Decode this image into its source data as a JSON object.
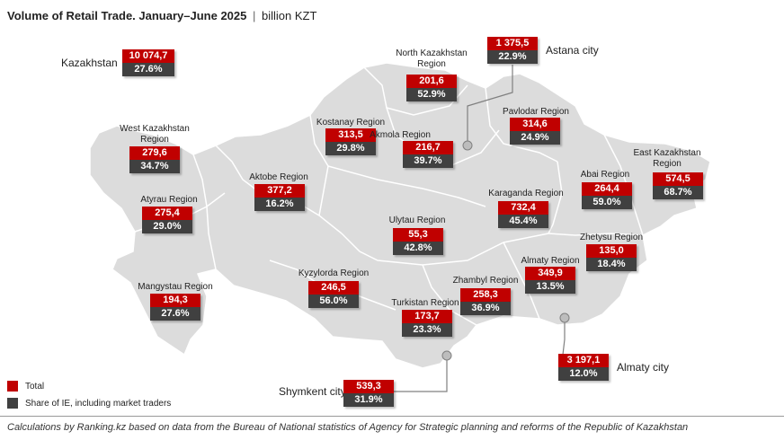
{
  "header": {
    "title": "Volume of Retail Trade. January–June 2025",
    "separator": "|",
    "unit": "billion KZT"
  },
  "colors": {
    "total": "#c00000",
    "share": "#404040",
    "land": "#dcdcdc",
    "border": "#ffffff"
  },
  "regions": [
    {
      "id": "kazakhstan",
      "name": "Kazakhstan",
      "total": "10 074,7",
      "share": "27.6%"
    },
    {
      "id": "west-kazakhstan",
      "name": "West Kazakhstan Region",
      "total": "279,6",
      "share": "34.7%"
    },
    {
      "id": "atyrau",
      "name": "Atyrau Region",
      "total": "275,4",
      "share": "29.0%"
    },
    {
      "id": "mangystau",
      "name": "Mangystau Region",
      "total": "194,3",
      "share": "27.6%"
    },
    {
      "id": "aktobe",
      "name": "Aktobe Region",
      "total": "377,2",
      "share": "16.2%"
    },
    {
      "id": "kostanay",
      "name": "Kostanay Region",
      "total": "313,5",
      "share": "29.8%"
    },
    {
      "id": "north-kazakhstan",
      "name": "North Kazakhstan Region",
      "total": "201,6",
      "share": "52.9%"
    },
    {
      "id": "akmola",
      "name": "Akmola Region",
      "total": "216,7",
      "share": "39.7%"
    },
    {
      "id": "astana",
      "name": "Astana city",
      "total": "1 375,5",
      "share": "22.9%"
    },
    {
      "id": "pavlodar",
      "name": "Pavlodar Region",
      "total": "314,6",
      "share": "24.9%"
    },
    {
      "id": "east-kazakhstan",
      "name": "East Kazakhstan Region",
      "total": "574,5",
      "share": "68.7%"
    },
    {
      "id": "abai",
      "name": "Abai Region",
      "total": "264,4",
      "share": "59.0%"
    },
    {
      "id": "karaganda",
      "name": "Karaganda Region",
      "total": "732,4",
      "share": "45.4%"
    },
    {
      "id": "ulytau",
      "name": "Ulytau Region",
      "total": "55,3",
      "share": "42.8%"
    },
    {
      "id": "kyzylorda",
      "name": "Kyzylorda Region",
      "total": "246,5",
      "share": "56.0%"
    },
    {
      "id": "turkistan",
      "name": "Turkistan Region",
      "total": "173,7",
      "share": "23.3%"
    },
    {
      "id": "zhambyl",
      "name": "Zhambyl Region",
      "total": "258,3",
      "share": "36.9%"
    },
    {
      "id": "almaty-region",
      "name": "Almaty Region",
      "total": "349,9",
      "share": "13.5%"
    },
    {
      "id": "zhetysu",
      "name": "Zhetysu Region",
      "total": "135,0",
      "share": "18.4%"
    },
    {
      "id": "almaty-city",
      "name": "Almaty city",
      "total": "3 197,1",
      "share": "12.0%"
    },
    {
      "id": "shymkent",
      "name": "Shymkent city",
      "total": "539,3",
      "share": "31.9%"
    }
  ],
  "legend": {
    "total_label": "Total",
    "share_label": "Share of IE, including market traders"
  },
  "footer": {
    "source": "Calculations by Ranking.kz based on data from the Bureau of National statistics of Agency for Strategic planning and reforms of the Republic of Kazakhstan"
  }
}
